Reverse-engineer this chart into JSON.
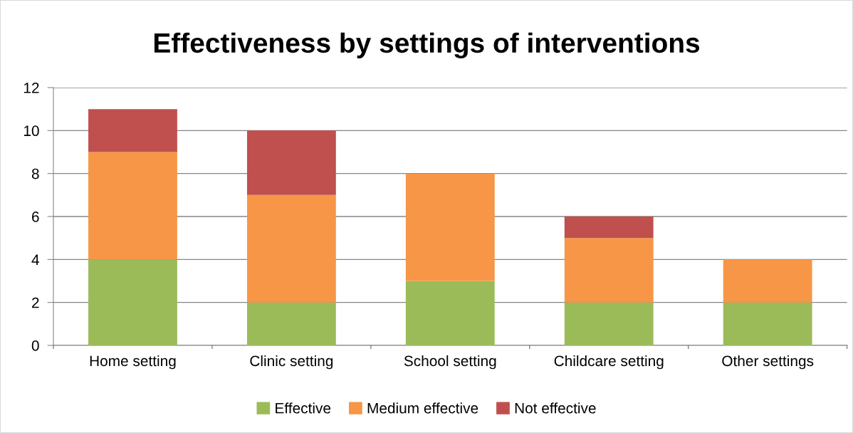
{
  "chart_data": {
    "type": "bar",
    "title": "Effectiveness by settings of interventions",
    "categories": [
      "Home setting",
      "Clinic setting",
      "School setting",
      "Childcare setting",
      "Other settings"
    ],
    "stacked": true,
    "series": [
      {
        "name": "Effective",
        "color": "#9bbb59",
        "values": [
          4,
          2,
          3,
          2,
          2
        ]
      },
      {
        "name": "Medium effective",
        "color": "#f79646",
        "values": [
          5,
          5,
          5,
          3,
          2
        ]
      },
      {
        "name": "Not effective",
        "color": "#c0504d",
        "values": [
          2,
          3,
          0,
          1,
          0
        ]
      }
    ],
    "ylim": [
      0,
      12
    ],
    "yticks": [
      0,
      2,
      4,
      6,
      8,
      10,
      12
    ],
    "grid": "y",
    "legend": "bottom"
  }
}
